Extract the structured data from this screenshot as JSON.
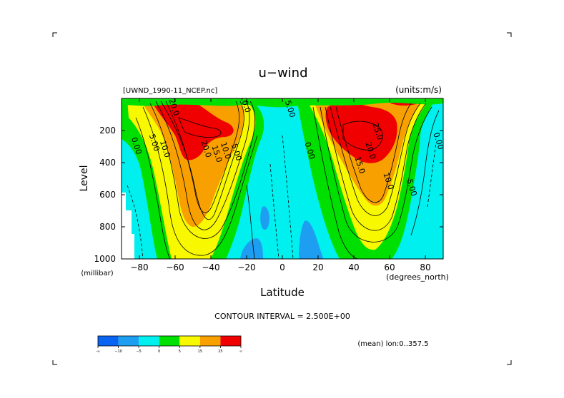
{
  "chart_data": {
    "type": "contour",
    "title": "u−wind",
    "dataset_label": "[UWND_1990-11_NCEP.nc]",
    "units_label": "(units:m/s)",
    "xlabel": "Latitude",
    "ylabel": "Level",
    "x_unit_label": "(degrees_north)",
    "y_unit_label": "(millibar)",
    "xlim": [
      -90,
      90
    ],
    "ylim": [
      1000,
      0
    ],
    "x_ticks": [
      -80,
      -60,
      -40,
      -20,
      0,
      20,
      40,
      60,
      80
    ],
    "y_ticks": [
      200,
      400,
      600,
      800,
      1000
    ],
    "x_tick_labels": [
      "−80",
      "−60",
      "−40",
      "−20",
      "0",
      "20",
      "40",
      "60",
      "80"
    ],
    "y_tick_labels": [
      "200",
      "400",
      "600",
      "800",
      "1000"
    ],
    "contour_interval_label": "CONTOUR INTERVAL = 2.500E+00",
    "mean_label": "(mean) lon:0..357.5",
    "colorbar": {
      "levels": [
        "-∞",
        "−10",
        "−5",
        "0",
        "5",
        "15",
        "25",
        "∞"
      ],
      "colors": [
        "#0a64f2",
        "#1e9ef0",
        "#00f0f0",
        "#00e000",
        "#f8f800",
        "#f8a000",
        "#f00000"
      ]
    },
    "contour_labels": [
      {
        "text": "0.00",
        "lat": -83,
        "p": 300
      },
      {
        "text": "5.00",
        "lat": -73,
        "p": 280
      },
      {
        "text": "10.0",
        "lat": -67,
        "p": 320
      },
      {
        "text": "20.0",
        "lat": -44,
        "p": 320
      },
      {
        "text": "15.0",
        "lat": -38,
        "p": 350
      },
      {
        "text": "10.0",
        "lat": -33,
        "p": 330
      },
      {
        "text": "5.00",
        "lat": -27,
        "p": 340
      },
      {
        "text": "20.0",
        "lat": -62,
        "p": 60
      },
      {
        "text": "10.0",
        "lat": -22,
        "p": 40
      },
      {
        "text": "5.00",
        "lat": 3,
        "p": 70
      },
      {
        "text": "0.00",
        "lat": 14,
        "p": 330
      },
      {
        "text": "25.0",
        "lat": 52,
        "p": 210
      },
      {
        "text": "20.0",
        "lat": 48,
        "p": 330
      },
      {
        "text": "15.0",
        "lat": 42,
        "p": 420
      },
      {
        "text": "10.0",
        "lat": 58,
        "p": 520
      },
      {
        "text": "5.00",
        "lat": 71,
        "p": 560
      },
      {
        "text": "0.00",
        "lat": 86,
        "p": 270
      }
    ]
  }
}
